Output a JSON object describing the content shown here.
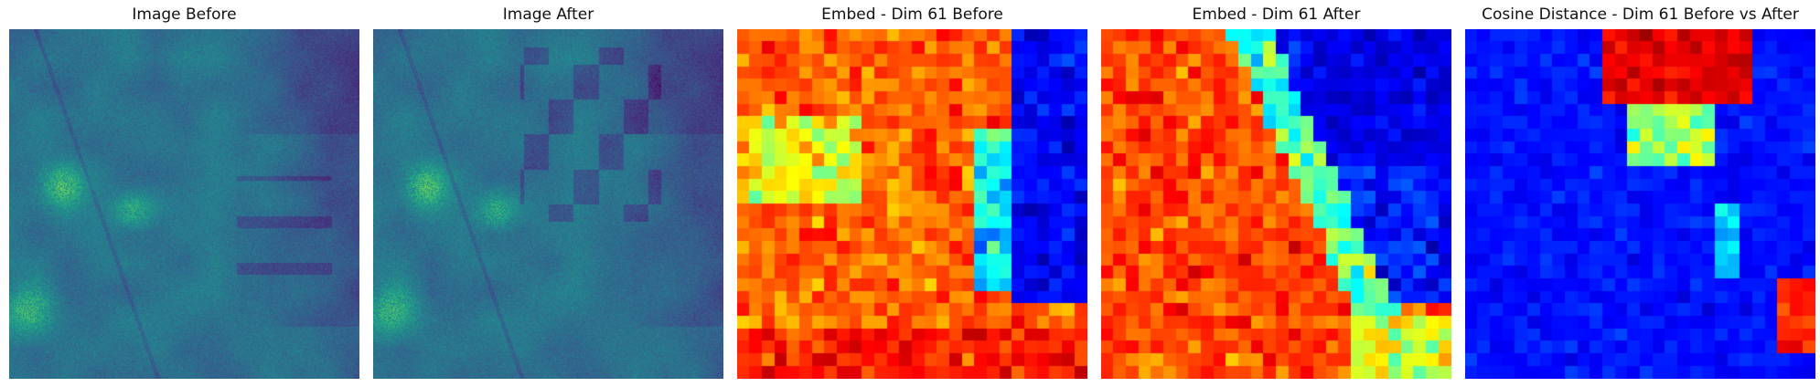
{
  "figure": {
    "panels": [
      {
        "id": "image-before",
        "title": "Image Before",
        "colormap": "viridis"
      },
      {
        "id": "image-after",
        "title": "Image After",
        "colormap": "viridis"
      },
      {
        "id": "embed-before",
        "title": "Embed - Dim 61 Before",
        "colormap": "jet"
      },
      {
        "id": "embed-after",
        "title": "Embed - Dim 61 After",
        "colormap": "jet"
      },
      {
        "id": "cosine-distance",
        "title": "Cosine Distance - Dim 61 Before vs After",
        "colormap": "jet"
      }
    ]
  }
}
